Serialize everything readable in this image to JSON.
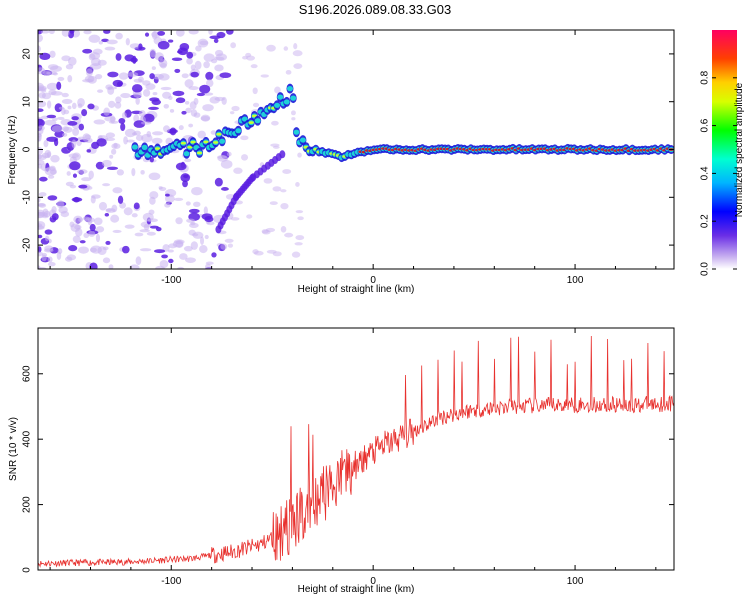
{
  "page_title": "S196.2026.089.08.33.G03",
  "colors": {
    "snr_line": "#e8312e",
    "ridge_core": "#d62020",
    "ridge_mid": "#1fd0d8",
    "ridge_edge": "#1a1ad8",
    "scatter_strong": "#5a1fe0",
    "scatter_weak": "#c9b2f0"
  },
  "chart_data": [
    {
      "type": "heatmap",
      "name": "spectrogram",
      "title": "",
      "xlabel": "Height of straight line (km)",
      "ylabel": "Frequency (Hz)",
      "xlim": [
        -166,
        149
      ],
      "ylim": [
        -25,
        25
      ],
      "x_ticks": [
        -100,
        0,
        100
      ],
      "y_ticks": [
        -20,
        -10,
        0,
        10,
        20
      ],
      "colorbar": {
        "label": "Normalized spectral amplitude",
        "range": [
          0.0,
          1.0
        ],
        "ticks": [
          0.0,
          0.2,
          0.4,
          0.6,
          0.8
        ],
        "colormap": "rainbow (violet to magenta)"
      },
      "ridge": [
        {
          "x": -115,
          "freq": 0.0,
          "amp": 0.3
        },
        {
          "x": -100,
          "freq": 0.0,
          "amp": 0.45
        },
        {
          "x": -85,
          "freq": 0.5,
          "amp": 0.55
        },
        {
          "x": -60,
          "freq": 6.0,
          "amp": 0.55
        },
        {
          "x": -40,
          "freq": 12.0,
          "amp": 0.35
        },
        {
          "x": -38,
          "freq": 3.0,
          "amp": 0.45
        },
        {
          "x": -30,
          "freq": 0.0,
          "amp": 0.6
        },
        {
          "x": -15,
          "freq": -1.5,
          "amp": 0.6
        },
        {
          "x": 0,
          "freq": 0.0,
          "amp": 0.8
        },
        {
          "x": 20,
          "freq": 0.0,
          "amp": 0.95
        },
        {
          "x": 100,
          "freq": 0.0,
          "amp": 0.95
        },
        {
          "x": 140,
          "freq": 0.0,
          "amp": 0.9
        },
        {
          "x": 149,
          "freq": 0.0,
          "amp": 0.7
        }
      ],
      "mirror_branch": [
        {
          "x": -45,
          "freq": -1.0
        },
        {
          "x": -60,
          "freq": -6.0
        },
        {
          "x": -68,
          "freq": -10.0
        },
        {
          "x": -77,
          "freq": -17.0
        }
      ]
    },
    {
      "type": "line",
      "name": "snr",
      "title": "",
      "xlabel": "Height of straight line (km)",
      "ylabel": "SNR (10 * v/v)",
      "xlim": [
        -166,
        149
      ],
      "ylim": [
        0,
        740
      ],
      "x_ticks": [
        -100,
        0,
        100
      ],
      "y_ticks": [
        0,
        200,
        400,
        600
      ],
      "trend": [
        {
          "x": -166,
          "y": 20
        },
        {
          "x": -120,
          "y": 25
        },
        {
          "x": -90,
          "y": 35
        },
        {
          "x": -70,
          "y": 55
        },
        {
          "x": -55,
          "y": 80
        },
        {
          "x": -45,
          "y": 120
        },
        {
          "x": -35,
          "y": 170
        },
        {
          "x": -25,
          "y": 230
        },
        {
          "x": -15,
          "y": 290
        },
        {
          "x": -5,
          "y": 340
        },
        {
          "x": 5,
          "y": 380
        },
        {
          "x": 15,
          "y": 410
        },
        {
          "x": 25,
          "y": 440
        },
        {
          "x": 35,
          "y": 470
        },
        {
          "x": 50,
          "y": 490
        },
        {
          "x": 70,
          "y": 500
        },
        {
          "x": 100,
          "y": 505
        },
        {
          "x": 130,
          "y": 505
        },
        {
          "x": 149,
          "y": 510
        }
      ]
    }
  ]
}
